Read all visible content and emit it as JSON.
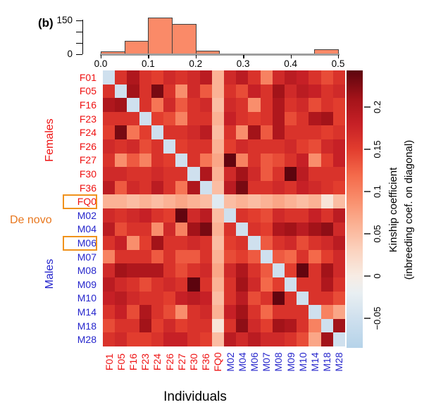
{
  "panel_label": "(b)",
  "xaxis_title": "Individuals",
  "colors": {
    "female_label": "#ee1111",
    "male_label": "#2525cc",
    "de_novo_orange": "#e8771e",
    "box_border_orange": "#f0921c",
    "hist_bar_fill": "#fa8a68",
    "hist_bar_edge": "#3f3f3f",
    "baseline_gray": "#9e9e9e",
    "axis_black": "#000000",
    "background": "#ffffff"
  },
  "chart_data": [
    {
      "type": "bar",
      "subtype": "histogram",
      "title": "",
      "xlabel": "",
      "ylabel": "",
      "bin_edges": [
        0.0,
        0.05,
        0.1,
        0.15,
        0.2,
        0.25,
        0.3,
        0.35,
        0.4,
        0.45,
        0.5
      ],
      "counts": [
        8,
        56,
        160,
        133,
        14,
        0,
        0,
        0,
        0,
        19
      ],
      "xtick_labels": [
        "0.0",
        "0.1",
        "0.2",
        "0.3",
        "0.4",
        "0.5"
      ],
      "xtick_values": [
        0.0,
        0.1,
        0.2,
        0.3,
        0.4,
        0.5
      ],
      "ytick_values": [
        0,
        50,
        100,
        150
      ],
      "ytick_labels": [
        "0",
        "150"
      ],
      "ylim": [
        0,
        165
      ],
      "xlim": [
        0.0,
        0.5
      ],
      "grid": false,
      "bar_color": "#fa8a68",
      "bar_edge_color": "#3f3f3f"
    },
    {
      "type": "heatmap",
      "labels": [
        "F01",
        "F05",
        "F16",
        "F23",
        "F24",
        "F26",
        "F27",
        "F30",
        "F36",
        "FQ0",
        "M02",
        "M04",
        "M06",
        "M07",
        "M08",
        "M09",
        "M10",
        "M14",
        "M18",
        "M28"
      ],
      "boxed_labels": [
        "FQ0",
        "M06"
      ],
      "groups": [
        {
          "label": "Females",
          "color": "#ee1111",
          "members": [
            "F01",
            "F05",
            "F16",
            "F23",
            "F24",
            "F26",
            "F27",
            "F30",
            "F36"
          ]
        },
        {
          "label": "De novo",
          "color": "#e8771e",
          "members": [
            "FQ0",
            "M06"
          ]
        },
        {
          "label": "Males",
          "color": "#2525cc",
          "members": [
            "M02",
            "M04",
            "M06",
            "M07",
            "M08",
            "M09",
            "M10",
            "M14",
            "M18",
            "M28"
          ]
        }
      ],
      "matrix": [
        [
          -0.05,
          0.16,
          0.2,
          0.16,
          0.15,
          0.17,
          0.16,
          0.17,
          0.19,
          0.06,
          0.17,
          0.19,
          0.16,
          0.1,
          0.17,
          0.19,
          0.18,
          0.16,
          0.14,
          0.16
        ],
        [
          0.16,
          -0.05,
          0.21,
          0.16,
          0.23,
          0.16,
          0.09,
          0.17,
          0.13,
          0.06,
          0.16,
          0.14,
          0.18,
          0.16,
          0.21,
          0.17,
          0.19,
          0.18,
          0.16,
          0.17
        ],
        [
          0.2,
          0.21,
          -0.05,
          0.16,
          0.11,
          0.17,
          0.13,
          0.16,
          0.17,
          0.05,
          0.17,
          0.16,
          0.09,
          0.16,
          0.2,
          0.16,
          0.17,
          0.14,
          0.16,
          0.15
        ],
        [
          0.16,
          0.16,
          0.16,
          -0.05,
          0.15,
          0.14,
          0.1,
          0.16,
          0.16,
          0.06,
          0.18,
          0.16,
          0.15,
          0.16,
          0.2,
          0.14,
          0.16,
          0.2,
          0.21,
          0.15
        ],
        [
          0.15,
          0.23,
          0.11,
          0.15,
          -0.05,
          0.16,
          0.16,
          0.17,
          0.19,
          0.05,
          0.16,
          0.09,
          0.21,
          0.13,
          0.2,
          0.16,
          0.16,
          0.16,
          0.15,
          0.16
        ],
        [
          0.17,
          0.16,
          0.17,
          0.14,
          0.16,
          -0.05,
          0.15,
          0.16,
          0.16,
          0.06,
          0.15,
          0.17,
          0.16,
          0.16,
          0.16,
          0.17,
          0.15,
          0.14,
          0.17,
          0.18
        ],
        [
          0.16,
          0.09,
          0.13,
          0.1,
          0.16,
          0.15,
          -0.05,
          0.16,
          0.11,
          0.07,
          0.24,
          0.1,
          0.16,
          0.13,
          0.14,
          0.16,
          0.18,
          0.09,
          0.15,
          0.18
        ],
        [
          0.17,
          0.17,
          0.16,
          0.16,
          0.17,
          0.16,
          0.16,
          -0.05,
          0.2,
          0.06,
          0.17,
          0.21,
          0.17,
          0.13,
          0.16,
          0.25,
          0.19,
          0.16,
          0.16,
          0.16
        ],
        [
          0.19,
          0.13,
          0.17,
          0.16,
          0.19,
          0.16,
          0.11,
          0.2,
          -0.05,
          0.05,
          0.19,
          0.23,
          0.16,
          0.16,
          0.17,
          0.16,
          0.18,
          0.17,
          0.16,
          0.15
        ],
        [
          0.06,
          0.06,
          0.05,
          0.06,
          0.05,
          0.06,
          0.07,
          0.06,
          0.05,
          -0.03,
          0.05,
          0.06,
          0.05,
          0.06,
          0.07,
          0.06,
          0.05,
          0.06,
          0.01,
          0.05
        ],
        [
          0.17,
          0.16,
          0.17,
          0.18,
          0.16,
          0.15,
          0.24,
          0.17,
          0.19,
          0.05,
          -0.05,
          0.16,
          0.15,
          0.14,
          0.17,
          0.16,
          0.16,
          0.18,
          0.16,
          0.19
        ],
        [
          0.19,
          0.14,
          0.16,
          0.16,
          0.09,
          0.17,
          0.1,
          0.21,
          0.23,
          0.06,
          0.16,
          -0.05,
          0.16,
          0.15,
          0.2,
          0.21,
          0.19,
          0.21,
          0.22,
          0.17
        ],
        [
          0.16,
          0.18,
          0.09,
          0.15,
          0.21,
          0.16,
          0.16,
          0.17,
          0.16,
          0.05,
          0.15,
          0.16,
          -0.05,
          0.13,
          0.16,
          0.17,
          0.14,
          0.16,
          0.17,
          0.19
        ],
        [
          0.1,
          0.16,
          0.16,
          0.16,
          0.13,
          0.16,
          0.13,
          0.13,
          0.16,
          0.06,
          0.14,
          0.15,
          0.13,
          -0.05,
          0.13,
          0.12,
          0.16,
          0.12,
          0.15,
          0.17
        ],
        [
          0.17,
          0.21,
          0.2,
          0.2,
          0.2,
          0.16,
          0.14,
          0.16,
          0.17,
          0.07,
          0.17,
          0.2,
          0.16,
          0.13,
          -0.05,
          0.15,
          0.24,
          0.16,
          0.21,
          0.17
        ],
        [
          0.19,
          0.17,
          0.16,
          0.14,
          0.16,
          0.17,
          0.16,
          0.25,
          0.16,
          0.06,
          0.16,
          0.21,
          0.17,
          0.12,
          0.15,
          -0.05,
          0.16,
          0.16,
          0.2,
          0.16
        ],
        [
          0.18,
          0.19,
          0.17,
          0.16,
          0.16,
          0.15,
          0.18,
          0.19,
          0.18,
          0.05,
          0.16,
          0.19,
          0.14,
          0.16,
          0.24,
          0.16,
          -0.05,
          0.16,
          0.16,
          0.14
        ],
        [
          0.16,
          0.18,
          0.14,
          0.2,
          0.16,
          0.14,
          0.09,
          0.16,
          0.17,
          0.06,
          0.18,
          0.21,
          0.16,
          0.12,
          0.16,
          0.16,
          0.16,
          -0.05,
          0.1,
          0.07
        ],
        [
          0.14,
          0.16,
          0.16,
          0.21,
          0.15,
          0.17,
          0.15,
          0.16,
          0.16,
          0.01,
          0.16,
          0.22,
          0.17,
          0.15,
          0.21,
          0.2,
          0.16,
          0.1,
          -0.05,
          0.21
        ],
        [
          0.16,
          0.17,
          0.15,
          0.15,
          0.16,
          0.18,
          0.18,
          0.16,
          0.15,
          0.05,
          0.19,
          0.17,
          0.19,
          0.17,
          0.17,
          0.16,
          0.14,
          0.07,
          0.21,
          -0.05
        ]
      ],
      "colorbar": {
        "title_line1": "Kinship coefficient",
        "title_line2": "(inbreeding coef. on diagonal)",
        "tick_values": [
          0.2,
          0.15,
          0.1,
          0.05,
          0,
          -0.05
        ],
        "tick_labels": [
          "0.2",
          "0.15",
          "0.1",
          "0.05",
          "0",
          "−0.05"
        ],
        "domain": [
          -0.085,
          0.2433
        ],
        "anchors": [
          {
            "v": -0.085,
            "color": "#b5d3e9"
          },
          {
            "v": -0.05,
            "color": "#cfe0ee"
          },
          {
            "v": -0.02,
            "color": "#e9eff2"
          },
          {
            "v": 0.0,
            "color": "#f7ece4"
          },
          {
            "v": 0.03,
            "color": "#fbd3bf"
          },
          {
            "v": 0.06,
            "color": "#fbb295"
          },
          {
            "v": 0.09,
            "color": "#f98e6c"
          },
          {
            "v": 0.12,
            "color": "#f4694a"
          },
          {
            "v": 0.15,
            "color": "#e23d2e"
          },
          {
            "v": 0.18,
            "color": "#c62026"
          },
          {
            "v": 0.21,
            "color": "#a31319"
          },
          {
            "v": 0.2433,
            "color": "#5c040e"
          }
        ]
      }
    }
  ]
}
